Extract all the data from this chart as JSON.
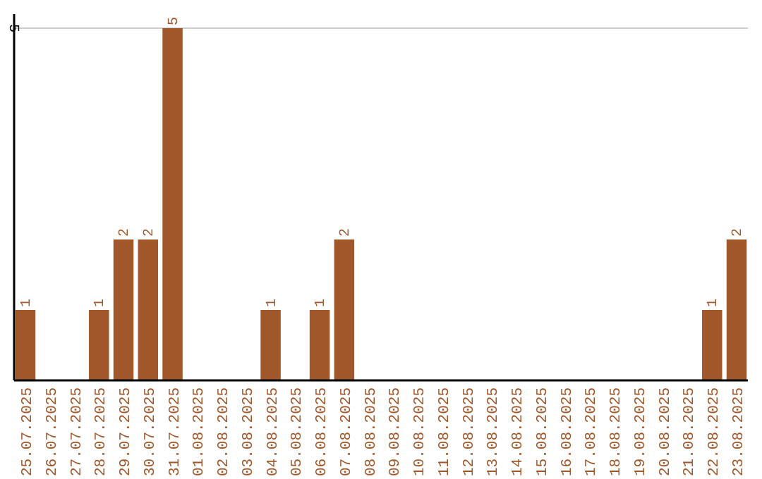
{
  "chart_data": {
    "type": "bar",
    "categories": [
      "25.07.2025",
      "26.07.2025",
      "27.07.2025",
      "28.07.2025",
      "29.07.2025",
      "30.07.2025",
      "31.07.2025",
      "01.08.2025",
      "02.08.2025",
      "03.08.2025",
      "04.08.2025",
      "05.08.2025",
      "06.08.2025",
      "07.08.2025",
      "08.08.2025",
      "09.08.2025",
      "10.08.2025",
      "11.08.2025",
      "12.08.2025",
      "13.08.2025",
      "14.08.2025",
      "15.08.2025",
      "16.08.2025",
      "17.08.2025",
      "18.08.2025",
      "19.08.2025",
      "20.08.2025",
      "21.08.2025",
      "22.08.2025",
      "23.08.2025"
    ],
    "values": [
      1,
      0,
      0,
      1,
      2,
      2,
      5,
      0,
      0,
      0,
      1,
      0,
      1,
      2,
      0,
      0,
      0,
      0,
      0,
      0,
      0,
      0,
      0,
      0,
      0,
      0,
      0,
      0,
      1,
      2
    ],
    "value_labels": [
      "1",
      null,
      null,
      "1",
      "2",
      "2",
      "5",
      null,
      null,
      null,
      "1",
      null,
      "1",
      "2",
      null,
      null,
      null,
      null,
      null,
      null,
      null,
      null,
      null,
      null,
      null,
      null,
      null,
      null,
      "1",
      "2"
    ],
    "color": "#a0572a",
    "ylim": [
      0,
      5.2
    ],
    "yticks": [
      5
    ],
    "grid": "y"
  }
}
